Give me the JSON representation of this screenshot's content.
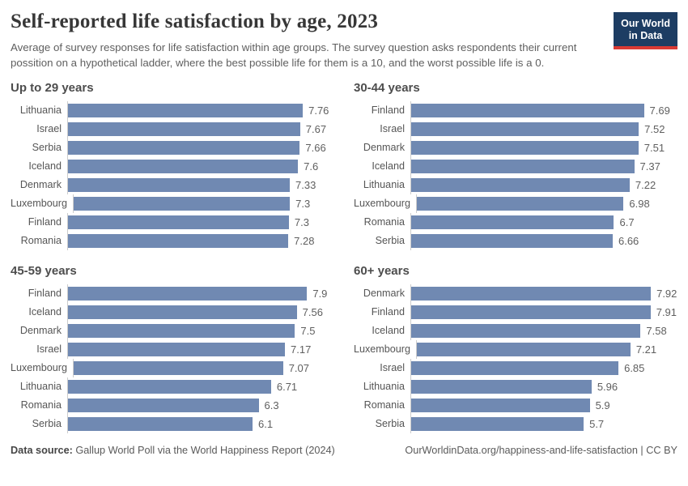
{
  "header": {
    "title": "Self-reported life satisfaction by age, 2023",
    "subtitle": "Average of survey responses for life satisfaction within age groups. The survey question asks respondents their current possition on a hypothetical ladder, where the best possible life for them is a 10, and the worst possible life is a 0.",
    "logo": {
      "line1": "Our World",
      "line2": "in Data"
    }
  },
  "footer": {
    "source_label": "Data source:",
    "source_text": " Gallup World Poll via the World Happiness Report (2024)",
    "attribution": "OurWorldinData.org/happiness-and-life-satisfaction | CC BY"
  },
  "colors": {
    "bar": "#7089b2",
    "axis_line": "#cccccc",
    "logo_bg": "#1d3d63",
    "logo_stripe": "#d93a34"
  },
  "chart_data": [
    {
      "type": "bar",
      "title": "Up to 29 years",
      "orientation": "horizontal",
      "xlim": [
        0,
        8.8
      ],
      "grid": false,
      "legend": "none",
      "categories": [
        "Lithuania",
        "Israel",
        "Serbia",
        "Iceland",
        "Denmark",
        "Luxembourg",
        "Finland",
        "Romania"
      ],
      "values": [
        7.76,
        7.67,
        7.66,
        7.6,
        7.33,
        7.3,
        7.3,
        7.28
      ]
    },
    {
      "type": "bar",
      "title": "30-44 years",
      "orientation": "horizontal",
      "xlim": [
        0,
        8.8
      ],
      "grid": false,
      "legend": "none",
      "categories": [
        "Finland",
        "Israel",
        "Denmark",
        "Iceland",
        "Lithuania",
        "Luxembourg",
        "Romania",
        "Serbia"
      ],
      "values": [
        7.69,
        7.52,
        7.51,
        7.37,
        7.22,
        6.98,
        6.7,
        6.66
      ]
    },
    {
      "type": "bar",
      "title": "45-59 years",
      "orientation": "horizontal",
      "xlim": [
        0,
        8.8
      ],
      "grid": false,
      "legend": "none",
      "categories": [
        "Finland",
        "Iceland",
        "Denmark",
        "Israel",
        "Luxembourg",
        "Lithuania",
        "Romania",
        "Serbia"
      ],
      "values": [
        7.9,
        7.56,
        7.5,
        7.17,
        7.07,
        6.71,
        6.3,
        6.1
      ]
    },
    {
      "type": "bar",
      "title": "60+ years",
      "orientation": "horizontal",
      "xlim": [
        0,
        8.8
      ],
      "grid": false,
      "legend": "none",
      "categories": [
        "Denmark",
        "Finland",
        "Iceland",
        "Luxembourg",
        "Israel",
        "Lithuania",
        "Romania",
        "Serbia"
      ],
      "values": [
        7.92,
        7.91,
        7.58,
        7.21,
        6.85,
        5.96,
        5.9,
        5.7
      ]
    }
  ]
}
